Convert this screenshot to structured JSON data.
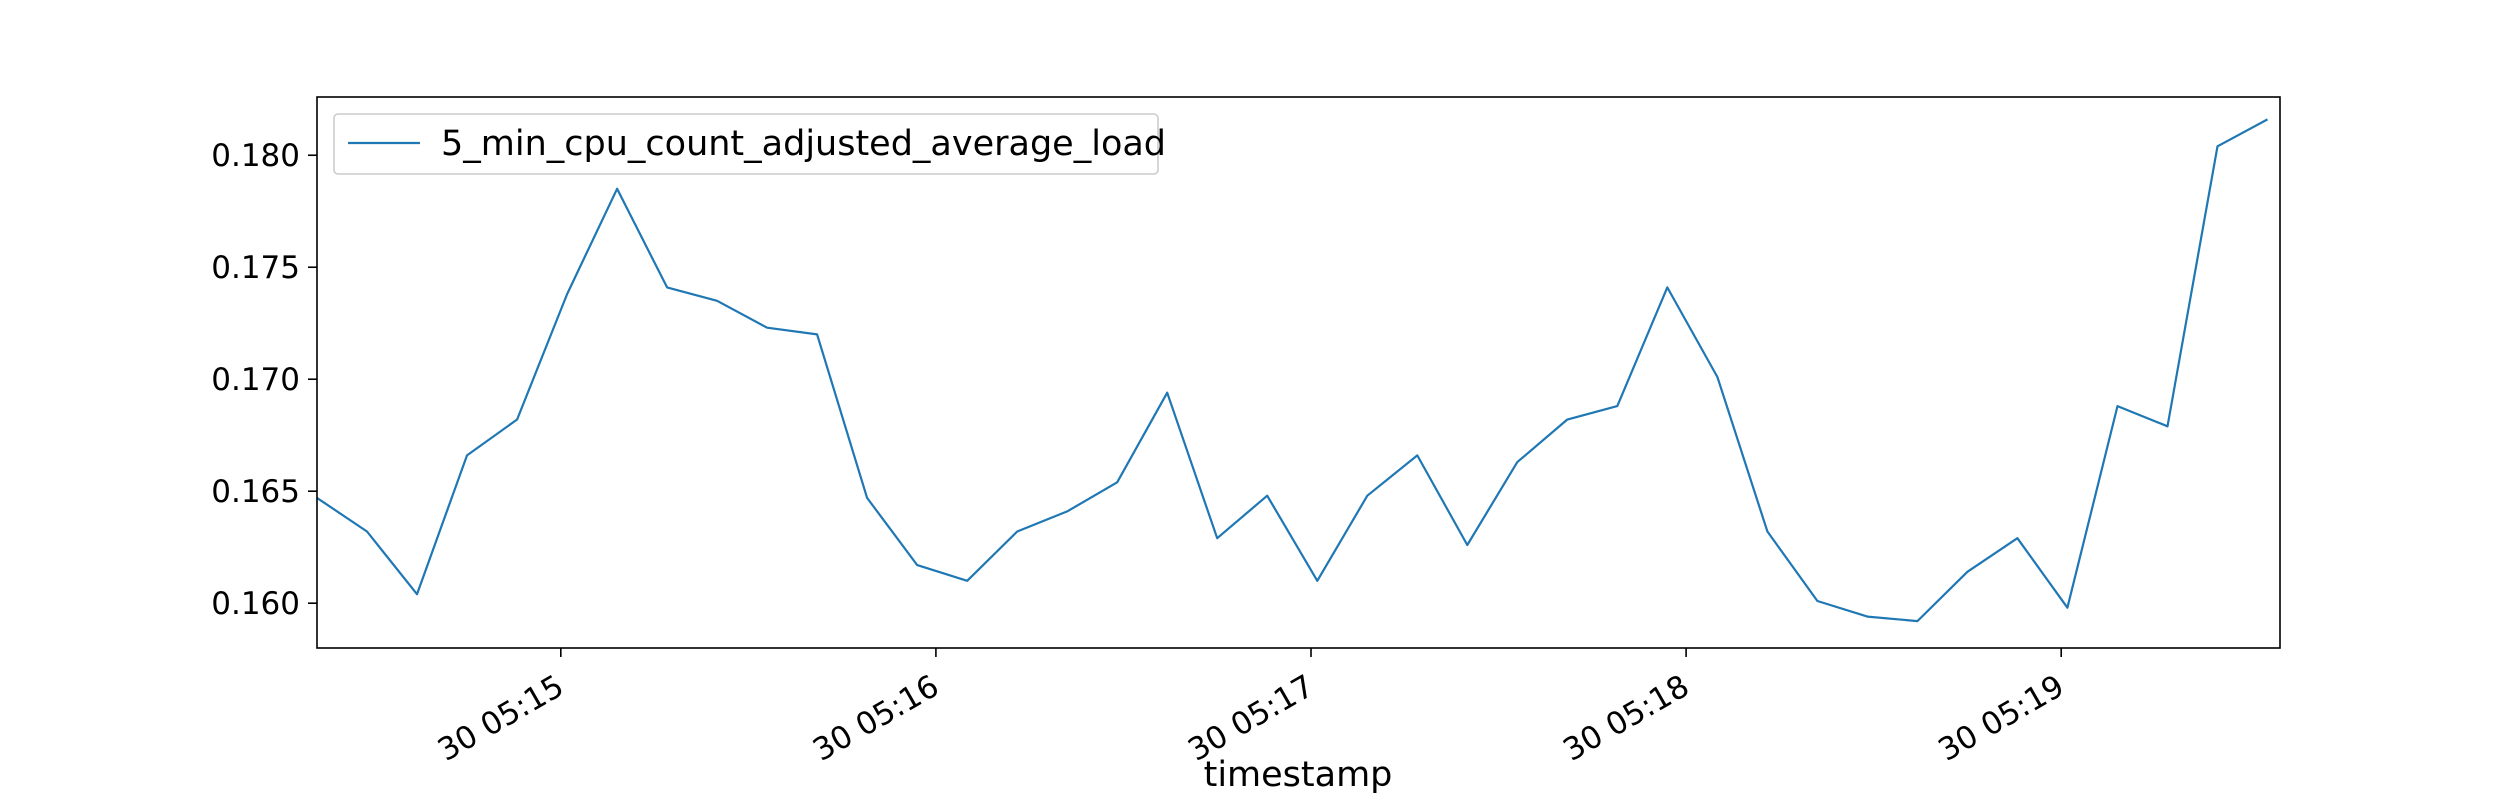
{
  "chart_data": {
    "type": "line",
    "xlabel": "timestamp",
    "ylabel": "",
    "title": "",
    "x_time_range": [
      "30 05:14:21",
      "30 05:19:35"
    ],
    "ylim": [
      0.158,
      0.1826
    ],
    "yticks": [
      0.16,
      0.165,
      0.17,
      0.175,
      0.18
    ],
    "ytick_labels": [
      "0.160",
      "0.165",
      "0.170",
      "0.175",
      "0.180"
    ],
    "xticks": [
      "30 05:15:00",
      "30 05:16:00",
      "30 05:17:00",
      "30 05:18:00",
      "30 05:19:00"
    ],
    "xtick_labels": [
      "30 05:15",
      "30 05:16",
      "30 05:17",
      "30 05:18",
      "30 05:19"
    ],
    "grid": false,
    "legend_position": "upper-left",
    "line_color": "#1f77b4",
    "series": [
      {
        "name": "5_min_cpu_count_adjusted_average_load",
        "points": [
          {
            "x": "30 05:14:21",
            "y": 0.1647
          },
          {
            "x": "30 05:14:29",
            "y": 0.1632
          },
          {
            "x": "30 05:14:37",
            "y": 0.1604
          },
          {
            "x": "30 05:14:45",
            "y": 0.1666
          },
          {
            "x": "30 05:14:53",
            "y": 0.1682
          },
          {
            "x": "30 05:15:01",
            "y": 0.1738
          },
          {
            "x": "30 05:15:09",
            "y": 0.1785
          },
          {
            "x": "30 05:15:17",
            "y": 0.1741
          },
          {
            "x": "30 05:15:25",
            "y": 0.1735
          },
          {
            "x": "30 05:15:33",
            "y": 0.1723
          },
          {
            "x": "30 05:15:41",
            "y": 0.172
          },
          {
            "x": "30 05:15:49",
            "y": 0.1647
          },
          {
            "x": "30 05:15:57",
            "y": 0.1617
          },
          {
            "x": "30 05:16:05",
            "y": 0.161
          },
          {
            "x": "30 05:16:13",
            "y": 0.1632
          },
          {
            "x": "30 05:16:21",
            "y": 0.1641
          },
          {
            "x": "30 05:16:29",
            "y": 0.1654
          },
          {
            "x": "30 05:16:37",
            "y": 0.1694
          },
          {
            "x": "30 05:16:45",
            "y": 0.1629
          },
          {
            "x": "30 05:16:53",
            "y": 0.1648
          },
          {
            "x": "30 05:17:01",
            "y": 0.161
          },
          {
            "x": "30 05:17:09",
            "y": 0.1648
          },
          {
            "x": "30 05:17:17",
            "y": 0.1666
          },
          {
            "x": "30 05:17:25",
            "y": 0.1626
          },
          {
            "x": "30 05:17:33",
            "y": 0.1663
          },
          {
            "x": "30 05:17:41",
            "y": 0.1682
          },
          {
            "x": "30 05:17:49",
            "y": 0.1688
          },
          {
            "x": "30 05:17:57",
            "y": 0.1741
          },
          {
            "x": "30 05:18:05",
            "y": 0.1701
          },
          {
            "x": "30 05:18:13",
            "y": 0.1632
          },
          {
            "x": "30 05:18:21",
            "y": 0.1601
          },
          {
            "x": "30 05:18:29",
            "y": 0.1594
          },
          {
            "x": "30 05:18:37",
            "y": 0.1592
          },
          {
            "x": "30 05:18:45",
            "y": 0.1614
          },
          {
            "x": "30 05:18:53",
            "y": 0.1629
          },
          {
            "x": "30 05:19:01",
            "y": 0.1598
          },
          {
            "x": "30 05:19:09",
            "y": 0.1688
          },
          {
            "x": "30 05:19:17",
            "y": 0.1679
          },
          {
            "x": "30 05:19:25",
            "y": 0.1804
          },
          {
            "x": "30 05:19:33",
            "y": 0.1816
          }
        ]
      }
    ]
  }
}
